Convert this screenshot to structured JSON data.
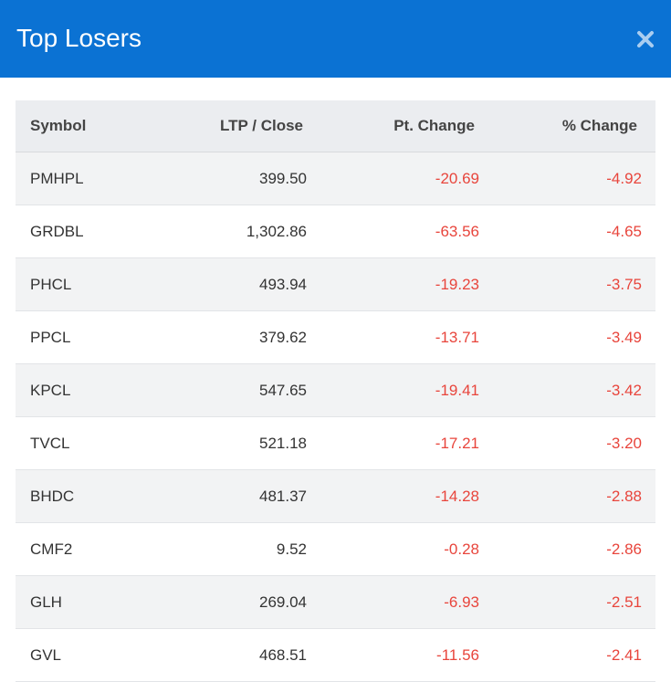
{
  "header": {
    "title": "Top Losers"
  },
  "table": {
    "columns": [
      "Symbol",
      "LTP / Close",
      "Pt. Change",
      "% Change"
    ],
    "rows": [
      [
        "PMHPL",
        "399.50",
        "-20.69",
        "-4.92"
      ],
      [
        "GRDBL",
        "1,302.86",
        "-63.56",
        "-4.65"
      ],
      [
        "PHCL",
        "493.94",
        "-19.23",
        "-3.75"
      ],
      [
        "PPCL",
        "379.62",
        "-13.71",
        "-3.49"
      ],
      [
        "KPCL",
        "547.65",
        "-19.41",
        "-3.42"
      ],
      [
        "TVCL",
        "521.18",
        "-17.21",
        "-3.20"
      ],
      [
        "BHDC",
        "481.37",
        "-14.28",
        "-2.88"
      ],
      [
        "CMF2",
        "9.52",
        "-0.28",
        "-2.86"
      ],
      [
        "GLH",
        "269.04",
        "-6.93",
        "-2.51"
      ],
      [
        "GVL",
        "468.51",
        "-11.56",
        "-2.41"
      ]
    ]
  }
}
